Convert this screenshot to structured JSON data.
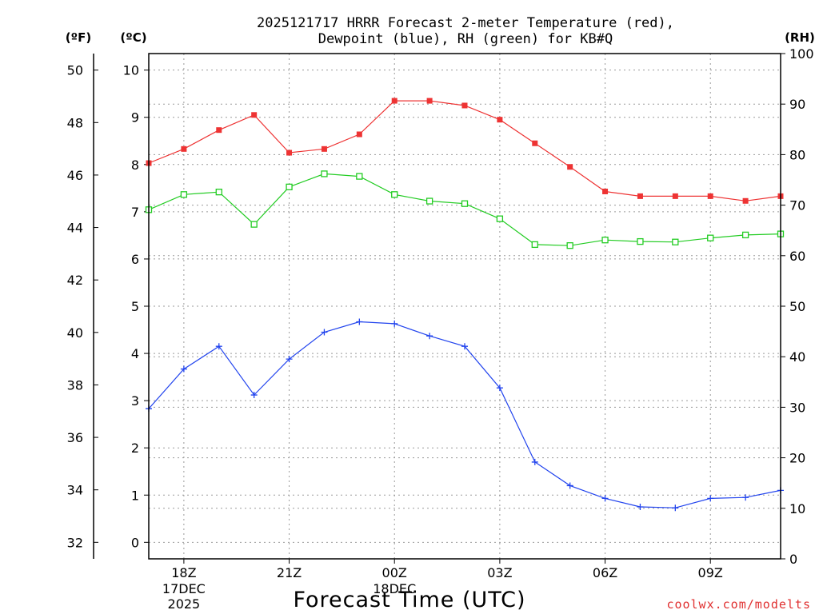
{
  "chart_data": {
    "type": "line",
    "title_line1": "2025121717 HRRR Forecast 2-meter Temperature (red),",
    "title_line2": "Dewpoint (blue), RH (green) for KB#Q",
    "units": {
      "fahrenheit": "(ºF)",
      "celsius": "(ºC)",
      "rh": "(RH)"
    },
    "xlabel": "Forecast Time (UTC)",
    "credit": "coolwx.com/modelts",
    "x_start": 17,
    "x_range": [
      17,
      35
    ],
    "x_ticks": [
      {
        "x": 18,
        "label": "18Z",
        "sub1": "17DEC",
        "sub2": "2025"
      },
      {
        "x": 21,
        "label": "21Z",
        "sub1": "",
        "sub2": ""
      },
      {
        "x": 24,
        "label": "00Z",
        "sub1": "18DEC",
        "sub2": ""
      },
      {
        "x": 27,
        "label": "03Z",
        "sub1": "",
        "sub2": ""
      },
      {
        "x": 30,
        "label": "06Z",
        "sub1": "",
        "sub2": ""
      },
      {
        "x": 33,
        "label": "09Z",
        "sub1": "",
        "sub2": ""
      }
    ],
    "y_celsius": {
      "range": [
        -0.35,
        10.35
      ],
      "ticks": [
        0,
        1,
        2,
        3,
        4,
        5,
        6,
        7,
        8,
        9,
        10
      ]
    },
    "y_fahrenheit": {
      "ticks": [
        32,
        34,
        36,
        38,
        40,
        42,
        44,
        46,
        48,
        50
      ]
    },
    "y_rh": {
      "range": [
        0,
        100
      ],
      "ticks": [
        0,
        10,
        20,
        30,
        40,
        50,
        60,
        70,
        80,
        90,
        100
      ]
    },
    "series": [
      {
        "name": "Temperature",
        "color": "#ee3333",
        "marker": "filled-square",
        "axis": "celsius",
        "values": [
          8.03,
          8.33,
          8.73,
          9.05,
          8.25,
          8.33,
          8.64,
          9.35,
          9.35,
          9.25,
          8.95,
          8.45,
          7.95,
          7.43,
          7.33,
          7.33,
          7.33,
          7.23,
          7.33
        ]
      },
      {
        "name": "Dewpoint",
        "color": "#2244ee",
        "marker": "plus",
        "axis": "celsius",
        "values": [
          2.83,
          3.67,
          4.15,
          3.12,
          3.88,
          4.45,
          4.67,
          4.63,
          4.37,
          4.15,
          3.27,
          1.7,
          1.2,
          0.93,
          0.75,
          0.73,
          0.93,
          0.95,
          1.1
        ]
      },
      {
        "name": "RH",
        "color": "#22cc22",
        "marker": "open-square",
        "axis": "rh",
        "values": [
          69.1,
          72.1,
          72.6,
          66.2,
          73.6,
          76.2,
          75.7,
          72.1,
          70.8,
          70.3,
          67.3,
          62.2,
          62.0,
          63.1,
          62.8,
          62.7,
          63.5,
          64.1,
          64.3
        ]
      }
    ]
  }
}
